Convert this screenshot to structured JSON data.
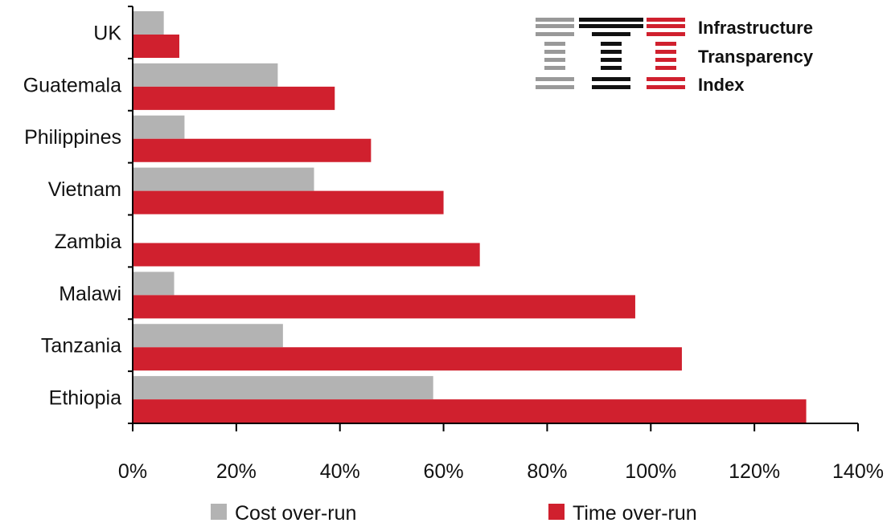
{
  "chart_data": {
    "type": "bar",
    "orientation": "horizontal",
    "categories": [
      "UK",
      "Guatemala",
      "Philippines",
      "Vietnam",
      "Zambia",
      "Malawi",
      "Tanzania",
      "Ethiopia"
    ],
    "series": [
      {
        "name": "Cost over-run",
        "color": "#b3b3b3",
        "values": [
          6,
          28,
          10,
          35,
          0,
          8,
          29,
          58
        ]
      },
      {
        "name": "Time over-run",
        "color": "#d0202e",
        "values": [
          9,
          39,
          46,
          60,
          67,
          97,
          106,
          130
        ]
      }
    ],
    "xlim": [
      0,
      140
    ],
    "xticks": [
      "0%",
      "20%",
      "40%",
      "60%",
      "80%",
      "100%",
      "120%",
      "140%"
    ],
    "legend_position": "bottom",
    "grid": false
  },
  "logo": {
    "lines": [
      "Infrastructure",
      "Transparency",
      "Index"
    ],
    "colors": [
      "#999999",
      "#111111",
      "#d0202e"
    ],
    "icon": "iti-logo-icon"
  }
}
